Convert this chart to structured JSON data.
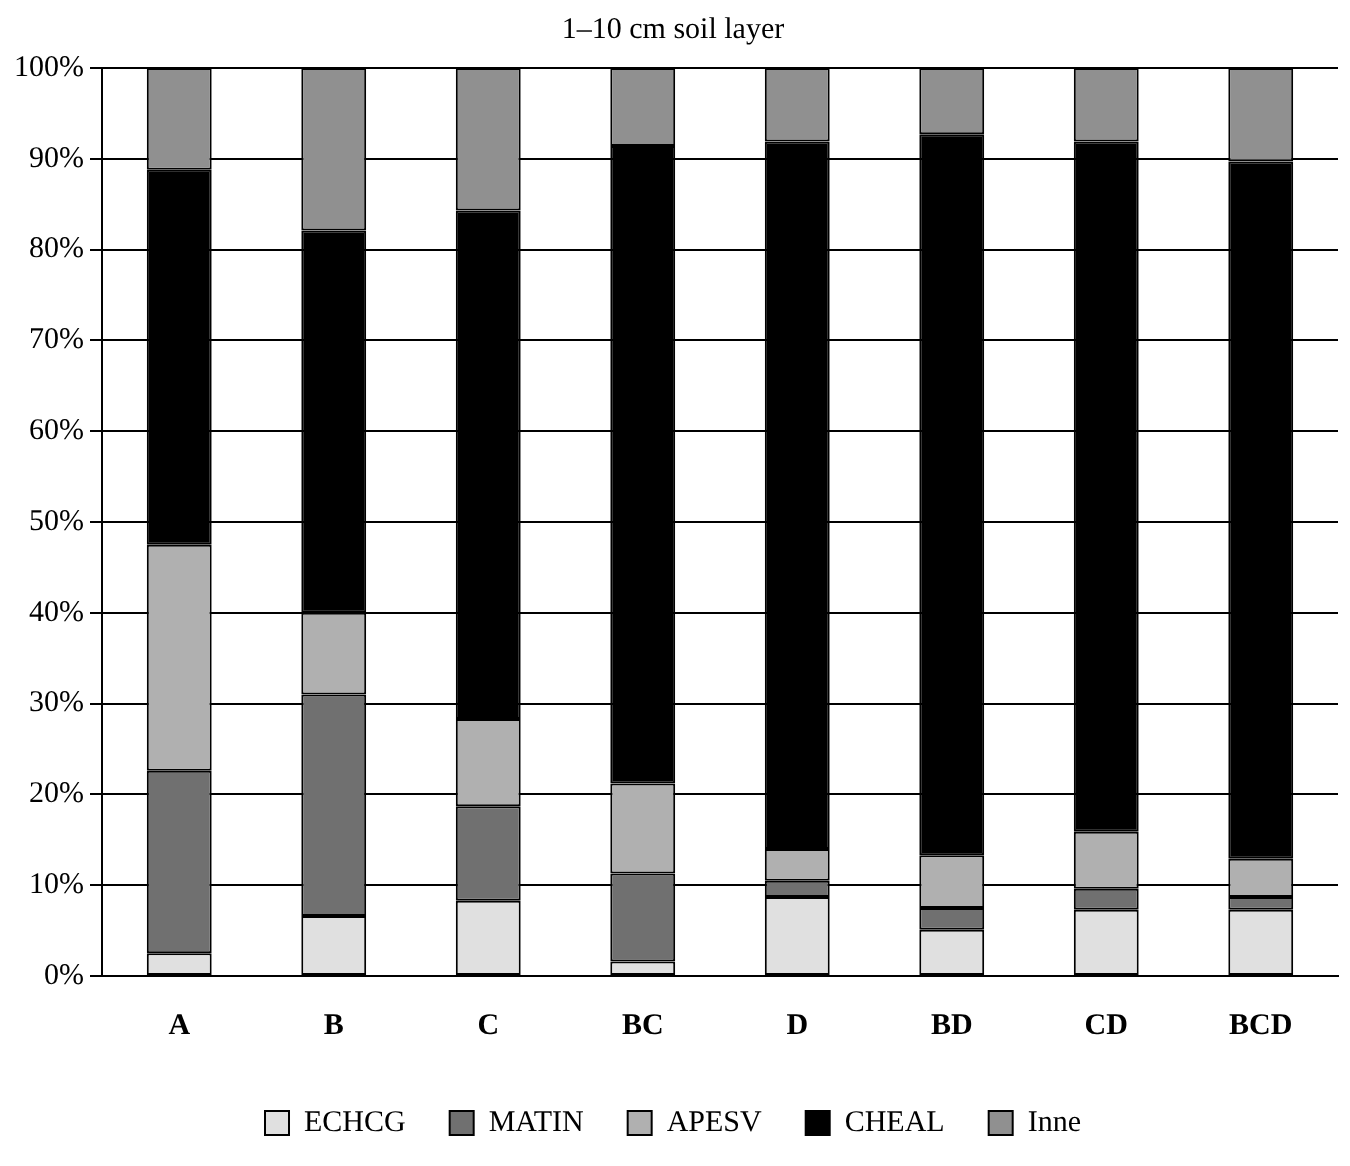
{
  "chart_data": {
    "type": "bar",
    "stacked": true,
    "title": "1–10 cm soil layer",
    "categories": [
      "A",
      "B",
      "C",
      "BC",
      "D",
      "BD",
      "CD",
      "BCD"
    ],
    "series": [
      {
        "name": "ECHCG",
        "color": "#e0e0e0",
        "values": [
          2.5,
          6.6,
          8.3,
          1.6,
          8.7,
          5.1,
          7.3,
          7.3
        ]
      },
      {
        "name": "MATIN",
        "color": "#707070",
        "values": [
          20.1,
          24.4,
          10.4,
          9.7,
          1.8,
          2.4,
          2.3,
          1.4
        ]
      },
      {
        "name": "APESV",
        "color": "#b0b0b0",
        "values": [
          24.9,
          9.0,
          9.6,
          9.9,
          3.5,
          5.8,
          6.3,
          4.2
        ]
      },
      {
        "name": "CHEAL",
        "color": "#000000",
        "values": [
          41.3,
          42.1,
          56.0,
          70.2,
          77.9,
          79.4,
          76.0,
          76.8
        ]
      },
      {
        "name": "Inne",
        "color": "#909090",
        "values": [
          11.2,
          17.9,
          15.7,
          8.6,
          8.1,
          7.3,
          8.1,
          10.3
        ]
      }
    ],
    "ylim": [
      0,
      100
    ],
    "yticks": [
      {
        "value": 0,
        "label": "0%"
      },
      {
        "value": 10,
        "label": "10%"
      },
      {
        "value": 20,
        "label": "20%"
      },
      {
        "value": 30,
        "label": "30%"
      },
      {
        "value": 40,
        "label": "40%"
      },
      {
        "value": 50,
        "label": "50%"
      },
      {
        "value": 60,
        "label": "60%"
      },
      {
        "value": 70,
        "label": "70%"
      },
      {
        "value": 80,
        "label": "80%"
      },
      {
        "value": 90,
        "label": "90%"
      },
      {
        "value": 100,
        "label": "100%"
      }
    ],
    "grid": "y",
    "legend": "bottom"
  }
}
